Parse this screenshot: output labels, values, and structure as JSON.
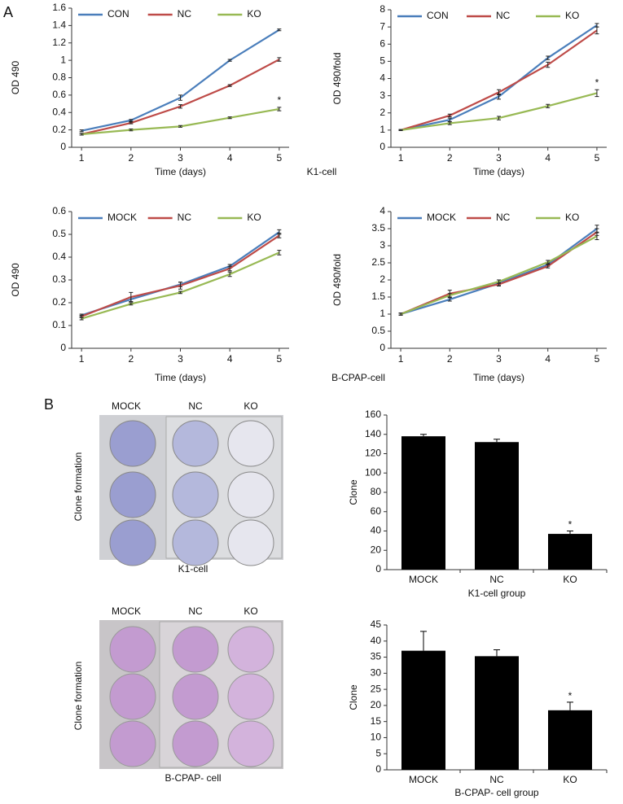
{
  "chart_data": [
    {
      "type": "line",
      "ylabel": "OD 490",
      "xlabel": "Time (days)",
      "x": [
        1,
        2,
        3,
        4,
        5
      ],
      "xlim": [
        0.8,
        5.2
      ],
      "xticks": [
        1,
        2,
        3,
        4,
        5
      ],
      "ylim": [
        0,
        1.6
      ],
      "yticks": [
        0,
        0.2,
        0.4,
        0.6,
        0.8,
        1,
        1.2,
        1.4,
        1.6
      ],
      "annotation": "*",
      "series": [
        {
          "name": "CON",
          "color": "#4a7ebb",
          "values": [
            0.19,
            0.31,
            0.57,
            1.0,
            1.35
          ],
          "errors": [
            0.01,
            0.01,
            0.03,
            0.01,
            0.01
          ]
        },
        {
          "name": "NC",
          "color": "#be4b48",
          "values": [
            0.15,
            0.28,
            0.47,
            0.71,
            1.01
          ],
          "errors": [
            0.01,
            0.01,
            0.02,
            0.01,
            0.02
          ]
        },
        {
          "name": "KO",
          "color": "#98b954",
          "values": [
            0.15,
            0.2,
            0.24,
            0.34,
            0.44
          ],
          "errors": [
            0.01,
            0.01,
            0.01,
            0.01,
            0.02
          ]
        }
      ]
    },
    {
      "type": "line",
      "ylabel": "OD 490/fold",
      "xlabel": "Time (days)",
      "x": [
        1,
        2,
        3,
        4,
        5
      ],
      "xlim": [
        0.8,
        5.2
      ],
      "xticks": [
        1,
        2,
        3,
        4,
        5
      ],
      "ylim": [
        0,
        8
      ],
      "yticks": [
        0,
        1,
        2,
        3,
        4,
        5,
        6,
        7,
        8
      ],
      "annotation": "*",
      "series": [
        {
          "name": "CON",
          "color": "#4a7ebb",
          "values": [
            1,
            1.6,
            2.95,
            5.2,
            7.1
          ],
          "errors": [
            0.03,
            0.1,
            0.15,
            0.1,
            0.1
          ]
        },
        {
          "name": "NC",
          "color": "#be4b48",
          "values": [
            1,
            1.85,
            3.2,
            4.8,
            6.8
          ],
          "errors": [
            0.03,
            0.08,
            0.15,
            0.15,
            0.2
          ]
        },
        {
          "name": "KO",
          "color": "#98b954",
          "values": [
            1,
            1.4,
            1.7,
            2.4,
            3.15
          ],
          "errors": [
            0.03,
            0.08,
            0.1,
            0.1,
            0.2
          ]
        }
      ]
    },
    {
      "type": "line",
      "ylabel": "OD 490",
      "xlabel": "Time (days)",
      "x": [
        1,
        2,
        3,
        4,
        5
      ],
      "xlim": [
        0.8,
        5.2
      ],
      "xticks": [
        1,
        2,
        3,
        4,
        5
      ],
      "ylim": [
        0,
        0.6
      ],
      "yticks": [
        0,
        0.1,
        0.2,
        0.3,
        0.4,
        0.5,
        0.6
      ],
      "series": [
        {
          "name": "MOCK",
          "color": "#4a7ebb",
          "values": [
            0.145,
            0.215,
            0.28,
            0.36,
            0.51
          ],
          "errors": [
            0.005,
            0.01,
            0.01,
            0.008,
            0.01
          ]
        },
        {
          "name": "NC",
          "color": "#be4b48",
          "values": [
            0.14,
            0.225,
            0.275,
            0.35,
            0.495
          ],
          "errors": [
            0.005,
            0.02,
            0.015,
            0.01,
            0.01
          ]
        },
        {
          "name": "KO",
          "color": "#98b954",
          "values": [
            0.13,
            0.195,
            0.245,
            0.325,
            0.42
          ],
          "errors": [
            0.005,
            0.005,
            0.005,
            0.01,
            0.01
          ]
        }
      ]
    },
    {
      "type": "line",
      "ylabel": "OD 490/fold",
      "xlabel": "Time (days)",
      "x": [
        1,
        2,
        3,
        4,
        5
      ],
      "xlim": [
        0.8,
        5.2
      ],
      "xticks": [
        1,
        2,
        3,
        4,
        5
      ],
      "ylim": [
        0,
        4
      ],
      "yticks": [
        0,
        0.5,
        1,
        1.5,
        2,
        2.5,
        3,
        3.5,
        4
      ],
      "series": [
        {
          "name": "MOCK",
          "color": "#4a7ebb",
          "values": [
            1,
            1.43,
            1.9,
            2.45,
            3.5
          ],
          "errors": [
            0.03,
            0.05,
            0.05,
            0.05,
            0.1
          ]
        },
        {
          "name": "NC",
          "color": "#be4b48",
          "values": [
            1,
            1.6,
            1.87,
            2.4,
            3.4
          ],
          "errors": [
            0.03,
            0.1,
            0.05,
            0.05,
            0.1
          ]
        },
        {
          "name": "KO",
          "color": "#98b954",
          "values": [
            1,
            1.55,
            1.95,
            2.52,
            3.28
          ],
          "errors": [
            0.03,
            0.05,
            0.05,
            0.05,
            0.1
          ]
        }
      ]
    },
    {
      "type": "bar",
      "ylabel": "Clone",
      "xlabel": "K1-cell group",
      "categories": [
        "MOCK",
        "NC",
        "KO"
      ],
      "color": "#000000",
      "values": [
        138,
        132,
        37
      ],
      "errors": [
        2,
        3,
        3
      ],
      "ylim": [
        0,
        160
      ],
      "yticks": [
        0,
        20,
        40,
        60,
        80,
        100,
        120,
        140,
        160
      ],
      "annotation": "*"
    },
    {
      "type": "bar",
      "ylabel": "Clone",
      "xlabel": "B-CPAP- cell group",
      "categories": [
        "MOCK",
        "NC",
        "KO"
      ],
      "color": "#000000",
      "values": [
        37,
        35.3,
        18.5
      ],
      "errors": [
        6,
        2,
        2.5
      ],
      "ylim": [
        0,
        45
      ],
      "yticks": [
        0,
        5,
        10,
        15,
        20,
        25,
        30,
        35,
        40,
        45
      ],
      "annotation": "*"
    }
  ],
  "figure": {
    "panel_a": "A",
    "panel_b": "B",
    "k1_label": "K1-cell",
    "bcpap_label": "B-CPAP-cell",
    "photos": [
      {
        "columns": [
          "MOCK",
          "NC",
          "KO"
        ],
        "side_label": "Clone formation",
        "caption": "K1-cell"
      },
      {
        "columns": [
          "MOCK",
          "NC",
          "KO"
        ],
        "side_label": "Clone formation",
        "caption": "B-CPAP- cell"
      }
    ]
  }
}
